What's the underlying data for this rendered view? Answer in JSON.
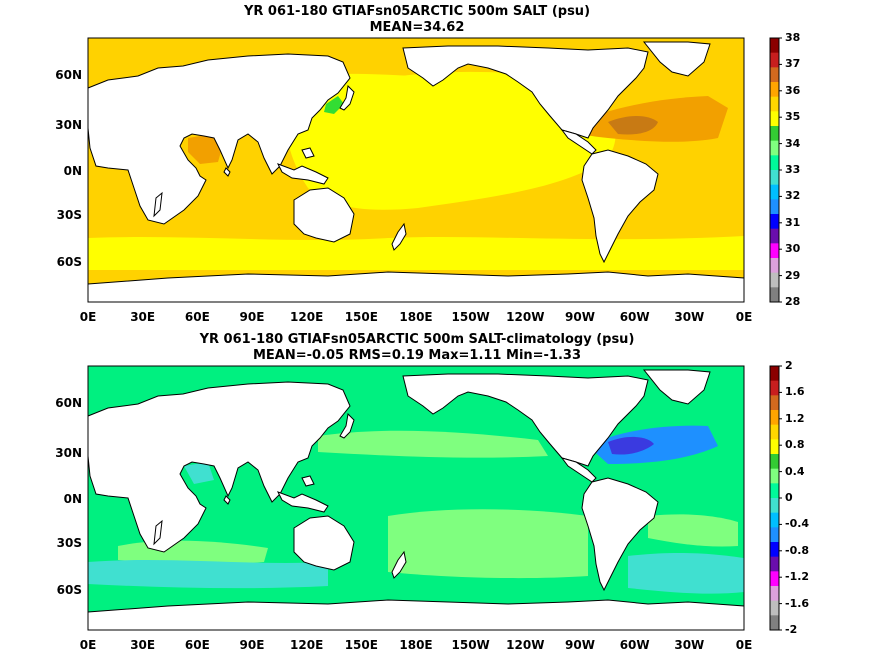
{
  "panels": [
    {
      "title": "YR 061-180 GTIAFsn05ARCTIC 500m SALT (psu)",
      "subtitle": "MEAN=34.62",
      "colorbar": {
        "labels": [
          "38",
          "37",
          "36",
          "35",
          "34",
          "33",
          "32",
          "31",
          "30",
          "29",
          "28"
        ],
        "colors": [
          "#8b0000",
          "#c81e1e",
          "#d2691e",
          "#ffa500",
          "#ffd700",
          "#ffff00",
          "#33cc33",
          "#7fff7f",
          "#00fa9a",
          "#40e0d0",
          "#00bfff",
          "#1e90ff",
          "#0000ff",
          "#6a0dad",
          "#ff00ff",
          "#dda0dd",
          "#bebebe",
          "#808080"
        ]
      },
      "base_color": "#ffd200"
    },
    {
      "title": "YR 061-180 GTIAFsn05ARCTIC 500m SALT-climatology (psu)",
      "subtitle": "MEAN=-0.05   RMS=0.19   Max=1.11   Min=-1.33",
      "colorbar": {
        "labels": [
          "2",
          "1.6",
          "1.2",
          "0.8",
          "0.4",
          "0",
          "-0.4",
          "-0.8",
          "-1.2",
          "-1.6",
          "-2"
        ],
        "colors": [
          "#8b0000",
          "#c81e1e",
          "#d2691e",
          "#ffa500",
          "#ffd700",
          "#ffff00",
          "#33cc33",
          "#7fff7f",
          "#00fa9a",
          "#40e0d0",
          "#00bfff",
          "#1e90ff",
          "#0000ff",
          "#6a0dad",
          "#ff00ff",
          "#dda0dd",
          "#bebebe",
          "#808080"
        ]
      },
      "base_color": "#00f080"
    }
  ],
  "lat_labels": [
    "60N",
    "30N",
    "0N",
    "30S",
    "60S"
  ],
  "lon_labels": [
    "0E",
    "30E",
    "60E",
    "90E",
    "120E",
    "150E",
    "180E",
    "150W",
    "120W",
    "90W",
    "60W",
    "30W",
    "0E"
  ]
}
